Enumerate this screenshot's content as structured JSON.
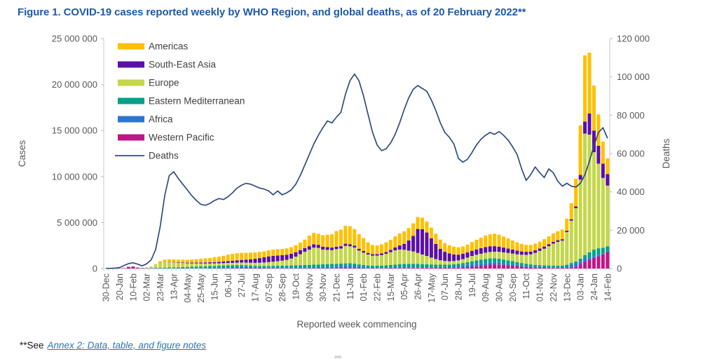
{
  "page": {
    "title": "Figure 1. COVID-19 cases reported weekly by WHO Region, and global deaths, as of 20 February 2022**",
    "footnote_prefix": "**See",
    "footnote_link": "Annex 2: Data, table, and figure notes",
    "title_color": "#1E5AA8",
    "link_color": "#2E75B6"
  },
  "chart_data": {
    "type": "bar",
    "subtype": "stacked-bars-with-line-overlay",
    "title": "Figure 1. COVID-19 cases reported weekly by WHO Region, and global deaths, as of 20 February 2022**",
    "xlabel": "Reported week commencing",
    "ylabel_left": "Cases",
    "ylabel_right": "Deaths",
    "grid": false,
    "legend_position": "inside-top-left",
    "n_points": 112,
    "x_tick_every": 3,
    "x_tick_labels": [
      "30-Dec",
      "20-Jan",
      "10-Feb",
      "02-Mar",
      "23-Mar",
      "13-Apr",
      "04-May",
      "25-May",
      "15-Jun",
      "06-Jul",
      "27-Jul",
      "17-Aug",
      "07-Sep",
      "28-Sep",
      "19-Oct",
      "09-Nov",
      "30-Nov",
      "21-Dec",
      "11-Jan",
      "01-Feb",
      "22-Feb",
      "15-Mar",
      "05-Apr",
      "26-Apr",
      "17-May",
      "07-Jun",
      "28-Jun",
      "19-Jul",
      "09-Aug",
      "30-Aug",
      "20-Sep",
      "11-Oct",
      "01-Nov",
      "22-Nov",
      "13-Dec",
      "03-Jan",
      "24-Jan",
      "14-Feb"
    ],
    "y_left": {
      "min": 0,
      "max": 25000000,
      "step": 5000000,
      "tick_labels": [
        "0",
        "5 000 000",
        "10 000 000",
        "15 000 000",
        "20 000 000",
        "25 000 000"
      ]
    },
    "y_right": {
      "min": 0,
      "max": 120000,
      "step": 20000,
      "tick_labels": [
        "0",
        "20 000",
        "40 000",
        "60 000",
        "80 000",
        "100 000",
        "120 000"
      ]
    },
    "stack_order_bottom_to_top": [
      "Western Pacific",
      "Africa",
      "Eastern Mediterranean",
      "Europe",
      "South-East Asia",
      "Americas"
    ],
    "colors": {
      "axis_text": "#595959",
      "legend_text": "#404040",
      "tick_line": "#BFBFBF",
      "axis_line": "#C9C9C9"
    },
    "series": [
      {
        "name": "Americas",
        "color": "#FFC000",
        "unit": "million cases per week",
        "values": [
          0,
          0,
          0,
          0.001,
          0.002,
          0.003,
          0.003,
          0.003,
          0.004,
          0.005,
          0.015,
          0.06,
          0.15,
          0.23,
          0.26,
          0.27,
          0.28,
          0.3,
          0.32,
          0.34,
          0.37,
          0.41,
          0.44,
          0.47,
          0.52,
          0.56,
          0.62,
          0.7,
          0.75,
          0.78,
          0.77,
          0.75,
          0.72,
          0.7,
          0.68,
          0.65,
          0.66,
          0.68,
          0.7,
          0.68,
          0.7,
          0.72,
          0.76,
          0.82,
          0.92,
          1.15,
          1.25,
          1.2,
          1.25,
          1.35,
          1.45,
          1.7,
          1.8,
          1.95,
          1.95,
          1.8,
          1.6,
          1.4,
          1.15,
          1.0,
          0.95,
          1.0,
          1.05,
          1.1,
          1.2,
          1.3,
          1.35,
          1.35,
          1.35,
          1.3,
          1.25,
          1.2,
          1.15,
          1.1,
          1.0,
          0.95,
          0.9,
          0.85,
          0.8,
          0.8,
          0.85,
          0.95,
          1.05,
          1.15,
          1.25,
          1.3,
          1.35,
          1.3,
          1.2,
          1.1,
          1.0,
          0.9,
          0.82,
          0.75,
          0.72,
          0.72,
          0.75,
          0.8,
          0.85,
          0.92,
          0.98,
          1.05,
          1.3,
          1.75,
          3.0,
          5.4,
          7.2,
          6.6,
          4.9,
          3.4,
          2.4,
          1.7
        ]
      },
      {
        "name": "South-East Asia",
        "color": "#5B10A6",
        "unit": "million cases per week",
        "values": [
          0,
          0,
          0,
          0,
          0.001,
          0.001,
          0.001,
          0.001,
          0.001,
          0.001,
          0.002,
          0.005,
          0.01,
          0.02,
          0.03,
          0.04,
          0.05,
          0.06,
          0.07,
          0.08,
          0.09,
          0.1,
          0.12,
          0.13,
          0.14,
          0.16,
          0.18,
          0.2,
          0.22,
          0.25,
          0.28,
          0.32,
          0.38,
          0.44,
          0.5,
          0.56,
          0.62,
          0.64,
          0.62,
          0.6,
          0.56,
          0.52,
          0.48,
          0.44,
          0.4,
          0.38,
          0.36,
          0.34,
          0.32,
          0.3,
          0.28,
          0.26,
          0.25,
          0.24,
          0.23,
          0.22,
          0.2,
          0.18,
          0.17,
          0.16,
          0.17,
          0.18,
          0.2,
          0.25,
          0.32,
          0.45,
          0.65,
          1.1,
          1.7,
          2.6,
          2.75,
          2.55,
          2.1,
          1.65,
          1.25,
          1.0,
          0.85,
          0.72,
          0.62,
          0.58,
          0.56,
          0.56,
          0.58,
          0.6,
          0.62,
          0.62,
          0.6,
          0.56,
          0.52,
          0.48,
          0.44,
          0.4,
          0.36,
          0.33,
          0.3,
          0.28,
          0.26,
          0.24,
          0.22,
          0.2,
          0.18,
          0.16,
          0.15,
          0.16,
          0.2,
          0.5,
          1.3,
          2.3,
          2.35,
          1.95,
          1.55,
          1.25
        ]
      },
      {
        "name": "Europe",
        "color": "#C4D64B",
        "unit": "million cases per week",
        "values": [
          0,
          0,
          0,
          0,
          0,
          0.001,
          0.001,
          0.002,
          0.005,
          0.06,
          0.15,
          0.35,
          0.55,
          0.62,
          0.6,
          0.55,
          0.5,
          0.45,
          0.4,
          0.37,
          0.35,
          0.33,
          0.3,
          0.28,
          0.27,
          0.26,
          0.25,
          0.25,
          0.26,
          0.27,
          0.28,
          0.29,
          0.3,
          0.32,
          0.35,
          0.38,
          0.42,
          0.45,
          0.5,
          0.55,
          0.62,
          0.75,
          0.95,
          1.2,
          1.45,
          1.65,
          1.85,
          1.8,
          1.6,
          1.55,
          1.5,
          1.6,
          1.65,
          1.9,
          1.85,
          1.75,
          1.5,
          1.35,
          1.2,
          1.1,
          1.1,
          1.15,
          1.25,
          1.4,
          1.55,
          1.6,
          1.55,
          1.45,
          1.35,
          1.2,
          1.05,
          0.9,
          0.75,
          0.6,
          0.48,
          0.4,
          0.36,
          0.35,
          0.37,
          0.42,
          0.5,
          0.58,
          0.62,
          0.65,
          0.68,
          0.7,
          0.72,
          0.75,
          0.78,
          0.8,
          0.82,
          0.85,
          0.9,
          0.97,
          1.1,
          1.3,
          1.55,
          1.8,
          2.1,
          2.4,
          2.6,
          2.7,
          3.55,
          4.6,
          5.8,
          8.6,
          13.2,
          12.8,
          10.6,
          9.2,
          7.6,
          6.6
        ]
      },
      {
        "name": "Eastern Mediterranean",
        "color": "#00A189",
        "unit": "million cases per week",
        "values": [
          0,
          0,
          0,
          0,
          0,
          0,
          0,
          0.005,
          0.01,
          0.02,
          0.04,
          0.06,
          0.07,
          0.08,
          0.09,
          0.1,
          0.11,
          0.12,
          0.13,
          0.15,
          0.16,
          0.17,
          0.18,
          0.19,
          0.2,
          0.21,
          0.22,
          0.22,
          0.21,
          0.2,
          0.19,
          0.18,
          0.17,
          0.16,
          0.16,
          0.17,
          0.18,
          0.19,
          0.2,
          0.21,
          0.22,
          0.23,
          0.24,
          0.25,
          0.26,
          0.27,
          0.28,
          0.29,
          0.3,
          0.3,
          0.29,
          0.27,
          0.25,
          0.24,
          0.23,
          0.22,
          0.21,
          0.2,
          0.19,
          0.19,
          0.2,
          0.22,
          0.25,
          0.28,
          0.32,
          0.35,
          0.37,
          0.38,
          0.38,
          0.37,
          0.35,
          0.33,
          0.3,
          0.28,
          0.26,
          0.25,
          0.24,
          0.24,
          0.25,
          0.27,
          0.29,
          0.32,
          0.36,
          0.4,
          0.44,
          0.46,
          0.45,
          0.43,
          0.4,
          0.37,
          0.34,
          0.31,
          0.28,
          0.26,
          0.24,
          0.22,
          0.2,
          0.19,
          0.18,
          0.17,
          0.16,
          0.15,
          0.14,
          0.15,
          0.18,
          0.25,
          0.4,
          0.55,
          0.7,
          0.7,
          0.6,
          0.55
        ]
      },
      {
        "name": "Africa",
        "color": "#2E74D0",
        "unit": "million cases per week",
        "values": [
          0,
          0,
          0,
          0,
          0,
          0,
          0,
          0,
          0.001,
          0.001,
          0.001,
          0.003,
          0.008,
          0.012,
          0.015,
          0.02,
          0.025,
          0.03,
          0.035,
          0.04,
          0.045,
          0.05,
          0.06,
          0.07,
          0.08,
          0.09,
          0.1,
          0.12,
          0.13,
          0.14,
          0.15,
          0.14,
          0.12,
          0.1,
          0.09,
          0.08,
          0.07,
          0.07,
          0.07,
          0.07,
          0.07,
          0.07,
          0.08,
          0.08,
          0.09,
          0.1,
          0.11,
          0.12,
          0.13,
          0.15,
          0.18,
          0.21,
          0.25,
          0.28,
          0.3,
          0.27,
          0.2,
          0.15,
          0.11,
          0.08,
          0.07,
          0.06,
          0.06,
          0.06,
          0.06,
          0.06,
          0.06,
          0.06,
          0.06,
          0.06,
          0.06,
          0.06,
          0.06,
          0.07,
          0.08,
          0.09,
          0.11,
          0.14,
          0.17,
          0.21,
          0.25,
          0.28,
          0.28,
          0.26,
          0.24,
          0.22,
          0.21,
          0.2,
          0.18,
          0.16,
          0.14,
          0.12,
          0.1,
          0.08,
          0.06,
          0.05,
          0.05,
          0.05,
          0.05,
          0.05,
          0.06,
          0.1,
          0.18,
          0.33,
          0.4,
          0.38,
          0.32,
          0.26,
          0.2,
          0.15,
          0.1,
          0.07,
          0.05
        ]
      },
      {
        "name": "Western Pacific",
        "color": "#C01588",
        "unit": "million cases per week",
        "values": [
          0.001,
          0.003,
          0.01,
          0.02,
          0.05,
          0.18,
          0.22,
          0.1,
          0.06,
          0.03,
          0.02,
          0.015,
          0.012,
          0.01,
          0.008,
          0.007,
          0.006,
          0.006,
          0.006,
          0.006,
          0.007,
          0.007,
          0.008,
          0.009,
          0.01,
          0.012,
          0.015,
          0.02,
          0.025,
          0.03,
          0.035,
          0.04,
          0.04,
          0.04,
          0.035,
          0.03,
          0.03,
          0.03,
          0.03,
          0.03,
          0.03,
          0.03,
          0.03,
          0.03,
          0.03,
          0.03,
          0.03,
          0.03,
          0.03,
          0.03,
          0.03,
          0.03,
          0.03,
          0.04,
          0.04,
          0.04,
          0.04,
          0.03,
          0.03,
          0.03,
          0.03,
          0.03,
          0.04,
          0.04,
          0.05,
          0.05,
          0.06,
          0.06,
          0.07,
          0.07,
          0.07,
          0.08,
          0.08,
          0.08,
          0.08,
          0.08,
          0.08,
          0.09,
          0.1,
          0.12,
          0.15,
          0.19,
          0.24,
          0.3,
          0.36,
          0.42,
          0.45,
          0.44,
          0.4,
          0.36,
          0.32,
          0.27,
          0.22,
          0.18,
          0.15,
          0.13,
          0.12,
          0.11,
          0.1,
          0.09,
          0.08,
          0.08,
          0.09,
          0.12,
          0.18,
          0.45,
          0.75,
          0.95,
          1.15,
          1.35,
          1.55,
          1.8
        ]
      }
    ],
    "line_series": {
      "name": "Deaths",
      "color": "#2F4D7E",
      "axis": "right",
      "unit": "deaths per week",
      "values": [
        100,
        100,
        200,
        500,
        1600,
        2600,
        3000,
        2300,
        1400,
        2500,
        4500,
        10000,
        22000,
        38000,
        48500,
        50500,
        47000,
        44000,
        41000,
        38000,
        35500,
        33500,
        33000,
        34000,
        35500,
        36500,
        36000,
        37500,
        39500,
        42000,
        43500,
        44500,
        44000,
        43000,
        42000,
        41500,
        40500,
        38500,
        40500,
        38500,
        39500,
        41000,
        44000,
        48500,
        54000,
        59500,
        65000,
        69500,
        73500,
        77000,
        76000,
        79000,
        81500,
        91000,
        98000,
        101500,
        98000,
        90000,
        80500,
        71000,
        64500,
        61500,
        62500,
        65500,
        70000,
        76000,
        83000,
        89000,
        93500,
        95500,
        94000,
        92500,
        88000,
        82500,
        76000,
        71000,
        68500,
        65000,
        57500,
        55500,
        57000,
        60500,
        64500,
        67500,
        69500,
        71000,
        70000,
        71500,
        69500,
        67000,
        63500,
        59500,
        52000,
        46000,
        49000,
        53000,
        50000,
        47500,
        52000,
        50000,
        45500,
        43000,
        44500,
        43000,
        42500,
        44500,
        49000,
        56000,
        64000,
        71000,
        73500,
        68000
      ]
    },
    "legend": [
      {
        "label": "Americas",
        "kind": "bar",
        "color": "#FFC000"
      },
      {
        "label": "South-East Asia",
        "kind": "bar",
        "color": "#5B10A6"
      },
      {
        "label": "Europe",
        "kind": "bar",
        "color": "#C4D64B"
      },
      {
        "label": "Eastern Mediterranean",
        "kind": "bar",
        "color": "#00A189"
      },
      {
        "label": "Africa",
        "kind": "bar",
        "color": "#2E74D0"
      },
      {
        "label": "Western Pacific",
        "kind": "bar",
        "color": "#C01588"
      },
      {
        "label": "Deaths",
        "kind": "line",
        "color": "#2F4D7E"
      }
    ]
  }
}
